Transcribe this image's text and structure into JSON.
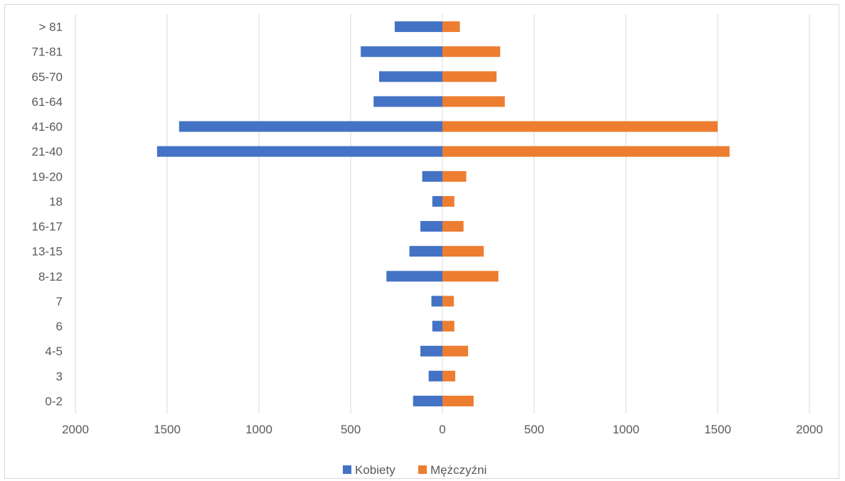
{
  "chart_data": {
    "type": "bar",
    "orientation": "horizontal",
    "layout": "population-pyramid",
    "categories": [
      "0-2",
      "3",
      "4-5",
      "6",
      "7",
      "8-12",
      "13-15",
      "16-17",
      "18",
      "19-20",
      "21-40",
      "41-60",
      "61-64",
      "65-70",
      "71-81",
      "> 81"
    ],
    "series": [
      {
        "name": "Kobiety",
        "color": "#4472c4",
        "values": [
          160,
          75,
          120,
          55,
          60,
          305,
          180,
          120,
          55,
          110,
          1555,
          1435,
          375,
          345,
          445,
          260
        ],
        "direction": "left"
      },
      {
        "name": "Mężczyźni",
        "color": "#ed7d31",
        "values": [
          170,
          70,
          140,
          65,
          62,
          305,
          225,
          115,
          65,
          130,
          1565,
          1500,
          340,
          295,
          315,
          95
        ],
        "direction": "right"
      }
    ],
    "xlim": [
      -2000,
      2000
    ],
    "x_ticks": [
      -2000,
      -1500,
      -1000,
      -500,
      0,
      500,
      1000,
      1500,
      2000
    ],
    "x_tick_labels": [
      "2000",
      "1500",
      "1000",
      "500",
      "0",
      "500",
      "1000",
      "1500",
      "2000"
    ],
    "grid": "vertical",
    "legend_position": "bottom",
    "title": "",
    "xlabel": "",
    "ylabel": ""
  }
}
